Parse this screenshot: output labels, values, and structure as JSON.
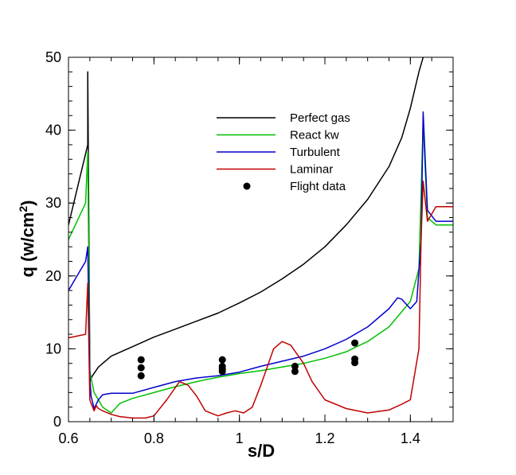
{
  "chart_data": {
    "type": "line",
    "title": "",
    "xlabel": "s/D",
    "ylabel": "q (w/cm",
    "ylabel_sup": "2",
    "ylabel_close": ")",
    "xlim": [
      0.6,
      1.5
    ],
    "ylim": [
      0,
      50
    ],
    "xticks": [
      0.6,
      0.8,
      1.0,
      1.2,
      1.4
    ],
    "xtick_labels": [
      "0.6",
      "0.8",
      "1",
      "1.2",
      "1.4"
    ],
    "yticks": [
      0,
      10,
      20,
      30,
      40,
      50
    ],
    "ytick_labels": [
      "0",
      "10",
      "20",
      "30",
      "40",
      "50"
    ],
    "grid": false,
    "legend_position": "upper-center",
    "series": [
      {
        "name": "Perfect gas",
        "color": "#000000",
        "style": "line",
        "x": [
          0.6,
          0.645,
          0.645,
          0.65,
          0.65,
          0.655,
          0.67,
          0.7,
          0.75,
          0.8,
          0.85,
          0.9,
          0.95,
          1.0,
          1.05,
          1.1,
          1.15,
          1.2,
          1.25,
          1.3,
          1.35,
          1.38,
          1.4,
          1.42,
          1.43
        ],
        "y": [
          27,
          38,
          48,
          8,
          5.5,
          6.2,
          7.5,
          9,
          10.3,
          11.6,
          12.7,
          13.8,
          14.9,
          16.3,
          17.8,
          19.6,
          21.6,
          24.0,
          27.0,
          30.5,
          35.0,
          39.0,
          43.0,
          48.0,
          50
        ]
      },
      {
        "name": "React kw",
        "color": "#00c000",
        "style": "line",
        "x": [
          0.6,
          0.64,
          0.645,
          0.65,
          0.653,
          0.66,
          0.68,
          0.7,
          0.72,
          0.75,
          0.8,
          0.85,
          0.9,
          0.95,
          1.0,
          1.05,
          1.1,
          1.15,
          1.2,
          1.25,
          1.3,
          1.35,
          1.4,
          1.42,
          1.43,
          1.44,
          1.46,
          1.5
        ],
        "y": [
          25,
          30,
          37,
          7,
          6,
          4,
          2,
          1.2,
          2.5,
          3.2,
          4.0,
          4.8,
          5.5,
          6.1,
          6.6,
          7.0,
          7.5,
          8.0,
          8.7,
          9.6,
          11.0,
          13.0,
          16.5,
          21.0,
          41.0,
          28.0,
          27.0,
          27.0
        ]
      },
      {
        "name": "Turbulent",
        "color": "#0000cc",
        "style": "line",
        "x": [
          0.6,
          0.64,
          0.645,
          0.65,
          0.653,
          0.66,
          0.67,
          0.68,
          0.7,
          0.75,
          0.8,
          0.85,
          0.9,
          0.95,
          1.0,
          1.05,
          1.1,
          1.15,
          1.2,
          1.25,
          1.3,
          1.35,
          1.37,
          1.38,
          1.4,
          1.415,
          1.425,
          1.43,
          1.44,
          1.46,
          1.5
        ],
        "y": [
          18,
          22,
          24,
          6,
          3.5,
          1.8,
          3.0,
          3.7,
          3.9,
          3.9,
          4.7,
          5.5,
          6.0,
          6.3,
          6.8,
          7.6,
          8.3,
          9.0,
          10.0,
          11.3,
          13.0,
          15.5,
          17.0,
          16.8,
          15.5,
          16.5,
          25.0,
          42.5,
          29.0,
          27.5,
          27.5
        ]
      },
      {
        "name": "Laminar",
        "color": "#c00000",
        "style": "line",
        "x": [
          0.6,
          0.64,
          0.645,
          0.65,
          0.653,
          0.66,
          0.665,
          0.67,
          0.68,
          0.7,
          0.72,
          0.75,
          0.78,
          0.8,
          0.83,
          0.86,
          0.88,
          0.9,
          0.92,
          0.95,
          0.97,
          0.99,
          1.01,
          1.03,
          1.05,
          1.08,
          1.1,
          1.12,
          1.15,
          1.17,
          1.2,
          1.25,
          1.3,
          1.35,
          1.38,
          1.4,
          1.42,
          1.425,
          1.43,
          1.44,
          1.46,
          1.5
        ],
        "y": [
          11.5,
          12,
          19,
          3,
          2.5,
          1.5,
          2.2,
          1.8,
          1.5,
          1.0,
          0.7,
          0.5,
          0.5,
          0.8,
          3.0,
          5.5,
          5.0,
          3.5,
          1.5,
          0.8,
          1.2,
          1.5,
          1.2,
          2.0,
          5.0,
          10.0,
          11.0,
          10.5,
          8.0,
          5.5,
          3.0,
          1.8,
          1.2,
          1.6,
          2.4,
          3.0,
          10.0,
          25.0,
          33.0,
          27.5,
          29.5,
          29.5
        ]
      },
      {
        "name": "Flight data",
        "color": "#000000",
        "style": "marker",
        "x": [
          0.77,
          0.77,
          0.77,
          0.96,
          0.96,
          0.96,
          0.96,
          1.13,
          1.13,
          1.27,
          1.27,
          1.27
        ],
        "y": [
          8.5,
          7.4,
          6.3,
          8.5,
          7.6,
          6.9,
          7.2,
          7.6,
          6.9,
          10.8,
          8.6,
          8.1
        ]
      }
    ]
  }
}
